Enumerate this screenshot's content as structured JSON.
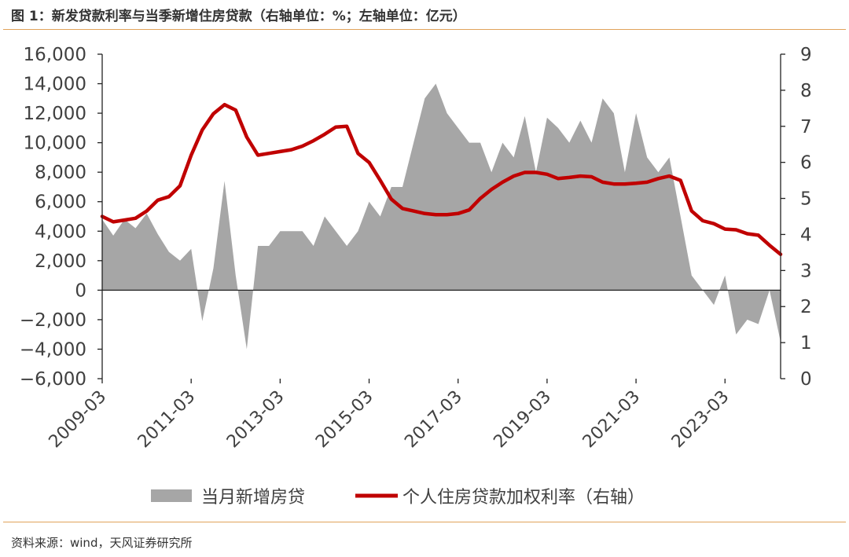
{
  "header": {
    "title": "图 1：新发贷款利率与当季新增住房贷款（右轴单位：%；左轴单位：亿元）"
  },
  "footer": {
    "source": "资料来源：wind，天风证券研究所"
  },
  "chart_data": {
    "type": "area+line",
    "x_tick_labels": [
      "2009-03",
      "2011-03",
      "2013-03",
      "2015-03",
      "2017-03",
      "2019-03",
      "2021-03",
      "2023-03"
    ],
    "x_start": "2009-03",
    "left_axis": {
      "min": -6000,
      "max": 16000,
      "step": 2000,
      "tick_labels": [
        "−6,000",
        "−4,000",
        "−2,000",
        "0",
        "2,000",
        "4,000",
        "6,000",
        "8,000",
        "10,000",
        "12,000",
        "14,000",
        "16,000"
      ]
    },
    "right_axis": {
      "min": 0,
      "max": 9,
      "step": 1,
      "tick_labels": [
        "0",
        "1",
        "2",
        "3",
        "4",
        "5",
        "6",
        "7",
        "8",
        "9"
      ]
    },
    "series": [
      {
        "name": "当月新增房贷",
        "kind": "area",
        "axis": "left",
        "color": "#a6a6a6",
        "points": [
          [
            0,
            4800
          ],
          [
            1,
            3700
          ],
          [
            2,
            4800
          ],
          [
            3,
            4200
          ],
          [
            4,
            5200
          ],
          [
            5,
            3800
          ],
          [
            6,
            2600
          ],
          [
            7,
            2000
          ],
          [
            8,
            2800
          ],
          [
            9,
            -2100
          ],
          [
            10,
            1500
          ],
          [
            11,
            7400
          ],
          [
            12,
            1000
          ],
          [
            13,
            -4000
          ],
          [
            14,
            3000
          ],
          [
            15,
            3000
          ],
          [
            16,
            4000
          ],
          [
            17,
            4000
          ],
          [
            18,
            4000
          ],
          [
            19,
            3000
          ],
          [
            20,
            5000
          ],
          [
            21,
            4000
          ],
          [
            22,
            3000
          ],
          [
            23,
            4000
          ],
          [
            24,
            6000
          ],
          [
            25,
            5000
          ],
          [
            26,
            7000
          ],
          [
            27,
            7000
          ],
          [
            28,
            10000
          ],
          [
            29,
            13000
          ],
          [
            30,
            14000
          ],
          [
            31,
            12000
          ],
          [
            32,
            11000
          ],
          [
            33,
            10000
          ],
          [
            34,
            10000
          ],
          [
            35,
            8000
          ],
          [
            36,
            10000
          ],
          [
            37,
            9000
          ],
          [
            38,
            11800
          ],
          [
            39,
            8000
          ],
          [
            40,
            11700
          ],
          [
            41,
            11000
          ],
          [
            42,
            10000
          ],
          [
            43,
            11500
          ],
          [
            44,
            10000
          ],
          [
            45,
            13000
          ],
          [
            46,
            12000
          ],
          [
            47,
            8000
          ],
          [
            48,
            12000
          ],
          [
            49,
            9000
          ],
          [
            50,
            8000
          ],
          [
            51,
            9000
          ],
          [
            52,
            5000
          ],
          [
            53,
            1000
          ],
          [
            54,
            0
          ],
          [
            55,
            -1000
          ],
          [
            56,
            1000
          ],
          [
            57,
            -3000
          ],
          [
            58,
            -2000
          ],
          [
            59,
            -2300
          ],
          [
            60,
            0
          ],
          [
            61,
            -3500
          ]
        ]
      },
      {
        "name": "个人住房贷款加权利率（右轴）",
        "kind": "line",
        "axis": "right",
        "color": "#c00000",
        "points": [
          [
            0,
            4.5
          ],
          [
            1,
            4.35
          ],
          [
            2,
            4.4
          ],
          [
            3,
            4.45
          ],
          [
            4,
            4.65
          ],
          [
            5,
            4.95
          ],
          [
            6,
            5.05
          ],
          [
            7,
            5.35
          ],
          [
            8,
            6.2
          ],
          [
            9,
            6.9
          ],
          [
            10,
            7.35
          ],
          [
            11,
            7.6
          ],
          [
            12,
            7.45
          ],
          [
            13,
            6.7
          ],
          [
            14,
            6.2
          ],
          [
            15,
            6.25
          ],
          [
            16,
            6.3
          ],
          [
            17,
            6.35
          ],
          [
            18,
            6.45
          ],
          [
            19,
            6.6
          ],
          [
            20,
            6.78
          ],
          [
            21,
            6.98
          ],
          [
            22,
            7.0
          ],
          [
            23,
            6.25
          ],
          [
            24,
            6.0
          ],
          [
            25,
            5.5
          ],
          [
            26,
            4.98
          ],
          [
            27,
            4.72
          ],
          [
            28,
            4.65
          ],
          [
            29,
            4.58
          ],
          [
            30,
            4.55
          ],
          [
            31,
            4.55
          ],
          [
            32,
            4.58
          ],
          [
            33,
            4.68
          ],
          [
            34,
            5.0
          ],
          [
            35,
            5.25
          ],
          [
            36,
            5.45
          ],
          [
            37,
            5.62
          ],
          [
            38,
            5.72
          ],
          [
            39,
            5.72
          ],
          [
            40,
            5.67
          ],
          [
            41,
            5.55
          ],
          [
            42,
            5.58
          ],
          [
            43,
            5.62
          ],
          [
            44,
            5.6
          ],
          [
            45,
            5.45
          ],
          [
            46,
            5.4
          ],
          [
            47,
            5.4
          ],
          [
            48,
            5.42
          ],
          [
            49,
            5.45
          ],
          [
            50,
            5.55
          ],
          [
            51,
            5.62
          ],
          [
            52,
            5.5
          ],
          [
            53,
            4.65
          ],
          [
            54,
            4.38
          ],
          [
            55,
            4.3
          ],
          [
            56,
            4.15
          ],
          [
            57,
            4.13
          ],
          [
            58,
            4.02
          ],
          [
            59,
            3.98
          ],
          [
            60,
            3.7
          ],
          [
            61,
            3.45
          ]
        ]
      }
    ],
    "legend": {
      "position": "bottom"
    }
  }
}
